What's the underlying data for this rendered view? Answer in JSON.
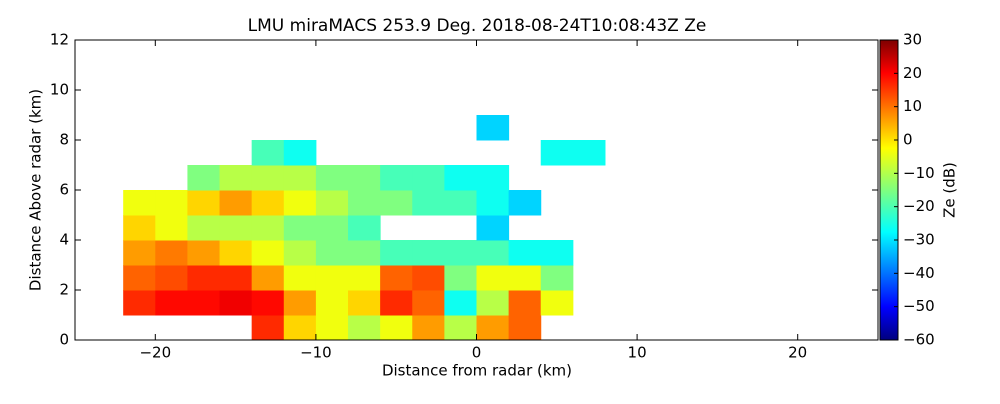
{
  "chart_data": {
    "type": "heatmap",
    "title": "LMU miraMACS 253.9 Deg. 2018-08-24T10:08:43Z  Ze",
    "xlabel": "Distance from radar (km)",
    "ylabel": "Distance Above radar  (km)",
    "colorbar_label": "Ze (dB)",
    "colormap": "jet",
    "cell_width": 2,
    "cell_height": 1,
    "x": [
      -21,
      -19,
      -17,
      -15,
      -13,
      -11,
      -9,
      -7,
      -5,
      -3,
      -1,
      1,
      3,
      5,
      7
    ],
    "y": [
      0.5,
      1.5,
      2.5,
      3.5,
      4.5,
      5.5,
      6.5,
      7.5,
      8.5
    ],
    "z": [
      [
        null,
        null,
        null,
        null,
        15,
        0,
        -5,
        -10,
        -5,
        5,
        -10,
        5,
        10,
        null,
        null
      ],
      [
        15,
        18,
        18,
        20,
        18,
        5,
        -5,
        0,
        15,
        10,
        -25,
        -10,
        10,
        -5,
        null
      ],
      [
        10,
        12,
        15,
        15,
        5,
        -5,
        -5,
        -5,
        10,
        12,
        -15,
        -5,
        -5,
        -15,
        null
      ],
      [
        5,
        8,
        5,
        0,
        -5,
        -10,
        -15,
        -15,
        -20,
        -20,
        -20,
        -20,
        -25,
        -25,
        null
      ],
      [
        0,
        -5,
        -10,
        -10,
        -10,
        -15,
        -15,
        -20,
        null,
        null,
        null,
        -30,
        null,
        null,
        null
      ],
      [
        -5,
        -5,
        0,
        5,
        0,
        -5,
        -10,
        -15,
        -15,
        -20,
        -20,
        -25,
        -30,
        null,
        null
      ],
      [
        null,
        null,
        -15,
        -10,
        -10,
        -10,
        -15,
        -15,
        -20,
        -20,
        -25,
        -25,
        null,
        null,
        null
      ],
      [
        null,
        null,
        null,
        null,
        -20,
        -25,
        null,
        null,
        null,
        null,
        null,
        null,
        null,
        -25,
        -25
      ],
      [
        null,
        null,
        null,
        null,
        null,
        null,
        null,
        null,
        null,
        null,
        null,
        -30,
        null,
        null,
        null
      ]
    ],
    "xlim": [
      -25,
      25
    ],
    "xticks": [
      {
        "value": -20,
        "label": "−20"
      },
      {
        "value": -10,
        "label": "−10"
      },
      0,
      10,
      20
    ],
    "ylim": [
      0,
      12
    ],
    "yticks": [
      0,
      2,
      4,
      6,
      8,
      10,
      12
    ],
    "clim": [
      -60,
      30
    ],
    "cticks": [
      {
        "value": -60,
        "label": "−60"
      },
      {
        "value": -50,
        "label": "−50"
      },
      {
        "value": -40,
        "label": "−40"
      },
      {
        "value": -30,
        "label": "−30"
      },
      {
        "value": -20,
        "label": "−20"
      },
      {
        "value": -10,
        "label": "−10"
      },
      0,
      10,
      20,
      30
    ]
  }
}
